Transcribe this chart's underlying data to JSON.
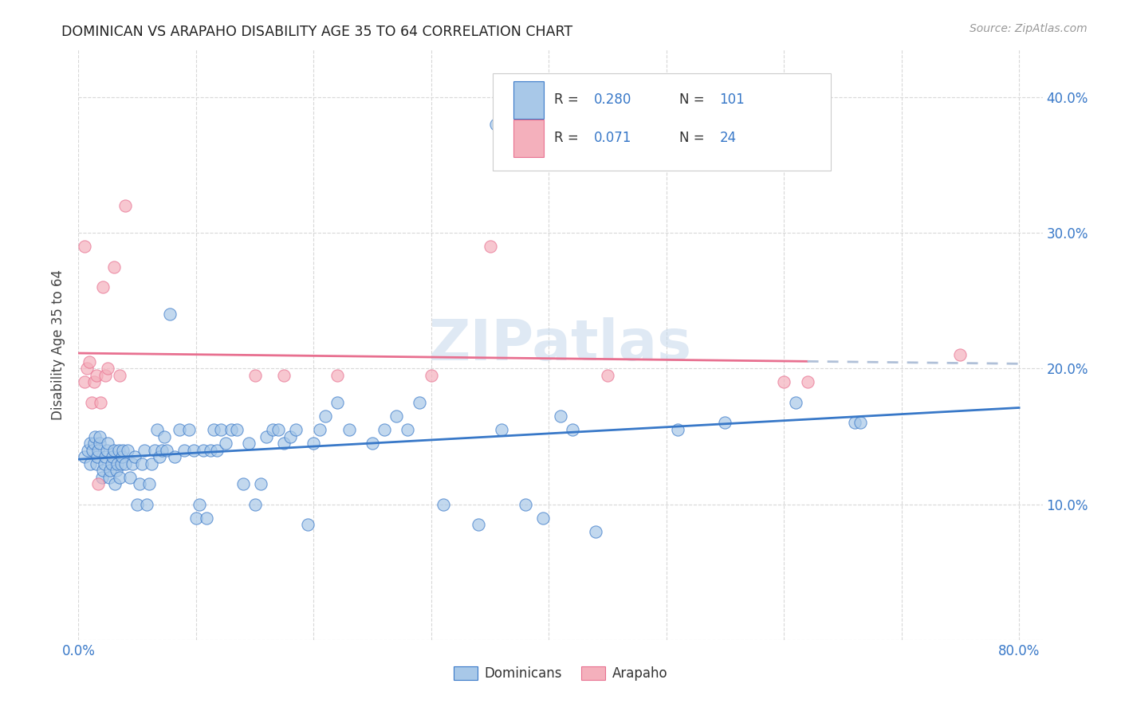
{
  "title": "DOMINICAN VS ARAPAHO DISABILITY AGE 35 TO 64 CORRELATION CHART",
  "source": "Source: ZipAtlas.com",
  "ylabel": "Disability Age 35 to 64",
  "xlim": [
    0.0,
    0.82
  ],
  "ylim": [
    0.0,
    0.435
  ],
  "xticks": [
    0.0,
    0.1,
    0.2,
    0.3,
    0.4,
    0.5,
    0.6,
    0.7,
    0.8
  ],
  "yticks": [
    0.0,
    0.1,
    0.2,
    0.3,
    0.4
  ],
  "dominican_color": "#a8c8e8",
  "arapaho_color": "#f4b0bc",
  "trendline_dominican_color": "#3878c8",
  "trendline_arapaho_color": "#e87090",
  "watermark": "ZIPatlas",
  "legend_R1": "0.280",
  "legend_N1": "101",
  "legend_R2": "0.071",
  "legend_N2": "24",
  "dominican_label": "Dominicans",
  "arapaho_label": "Arapaho",
  "dominican_scatter": [
    [
      0.005,
      0.135
    ],
    [
      0.008,
      0.14
    ],
    [
      0.01,
      0.145
    ],
    [
      0.01,
      0.13
    ],
    [
      0.012,
      0.14
    ],
    [
      0.013,
      0.145
    ],
    [
      0.014,
      0.15
    ],
    [
      0.015,
      0.13
    ],
    [
      0.016,
      0.135
    ],
    [
      0.017,
      0.14
    ],
    [
      0.018,
      0.145
    ],
    [
      0.018,
      0.15
    ],
    [
      0.02,
      0.12
    ],
    [
      0.021,
      0.125
    ],
    [
      0.022,
      0.13
    ],
    [
      0.023,
      0.135
    ],
    [
      0.024,
      0.14
    ],
    [
      0.025,
      0.145
    ],
    [
      0.026,
      0.12
    ],
    [
      0.027,
      0.125
    ],
    [
      0.028,
      0.13
    ],
    [
      0.029,
      0.135
    ],
    [
      0.03,
      0.14
    ],
    [
      0.031,
      0.115
    ],
    [
      0.032,
      0.125
    ],
    [
      0.033,
      0.13
    ],
    [
      0.034,
      0.14
    ],
    [
      0.035,
      0.12
    ],
    [
      0.036,
      0.13
    ],
    [
      0.037,
      0.135
    ],
    [
      0.038,
      0.14
    ],
    [
      0.04,
      0.13
    ],
    [
      0.042,
      0.14
    ],
    [
      0.044,
      0.12
    ],
    [
      0.046,
      0.13
    ],
    [
      0.048,
      0.135
    ],
    [
      0.05,
      0.1
    ],
    [
      0.052,
      0.115
    ],
    [
      0.054,
      0.13
    ],
    [
      0.056,
      0.14
    ],
    [
      0.058,
      0.1
    ],
    [
      0.06,
      0.115
    ],
    [
      0.062,
      0.13
    ],
    [
      0.065,
      0.14
    ],
    [
      0.067,
      0.155
    ],
    [
      0.069,
      0.135
    ],
    [
      0.071,
      0.14
    ],
    [
      0.073,
      0.15
    ],
    [
      0.075,
      0.14
    ],
    [
      0.078,
      0.24
    ],
    [
      0.082,
      0.135
    ],
    [
      0.086,
      0.155
    ],
    [
      0.09,
      0.14
    ],
    [
      0.094,
      0.155
    ],
    [
      0.098,
      0.14
    ],
    [
      0.1,
      0.09
    ],
    [
      0.103,
      0.1
    ],
    [
      0.106,
      0.14
    ],
    [
      0.109,
      0.09
    ],
    [
      0.112,
      0.14
    ],
    [
      0.115,
      0.155
    ],
    [
      0.118,
      0.14
    ],
    [
      0.121,
      0.155
    ],
    [
      0.125,
      0.145
    ],
    [
      0.13,
      0.155
    ],
    [
      0.135,
      0.155
    ],
    [
      0.14,
      0.115
    ],
    [
      0.145,
      0.145
    ],
    [
      0.15,
      0.1
    ],
    [
      0.155,
      0.115
    ],
    [
      0.16,
      0.15
    ],
    [
      0.165,
      0.155
    ],
    [
      0.17,
      0.155
    ],
    [
      0.175,
      0.145
    ],
    [
      0.18,
      0.15
    ],
    [
      0.185,
      0.155
    ],
    [
      0.195,
      0.085
    ],
    [
      0.2,
      0.145
    ],
    [
      0.205,
      0.155
    ],
    [
      0.21,
      0.165
    ],
    [
      0.22,
      0.175
    ],
    [
      0.23,
      0.155
    ],
    [
      0.25,
      0.145
    ],
    [
      0.26,
      0.155
    ],
    [
      0.27,
      0.165
    ],
    [
      0.28,
      0.155
    ],
    [
      0.29,
      0.175
    ],
    [
      0.31,
      0.1
    ],
    [
      0.34,
      0.085
    ],
    [
      0.36,
      0.155
    ],
    [
      0.38,
      0.1
    ],
    [
      0.395,
      0.09
    ],
    [
      0.41,
      0.165
    ],
    [
      0.42,
      0.155
    ],
    [
      0.44,
      0.08
    ],
    [
      0.51,
      0.155
    ],
    [
      0.55,
      0.16
    ],
    [
      0.61,
      0.175
    ],
    [
      0.66,
      0.16
    ],
    [
      0.665,
      0.16
    ],
    [
      0.355,
      0.38
    ]
  ],
  "arapaho_scatter": [
    [
      0.005,
      0.19
    ],
    [
      0.007,
      0.2
    ],
    [
      0.009,
      0.205
    ],
    [
      0.011,
      0.175
    ],
    [
      0.013,
      0.19
    ],
    [
      0.015,
      0.195
    ],
    [
      0.017,
      0.115
    ],
    [
      0.019,
      0.175
    ],
    [
      0.021,
      0.26
    ],
    [
      0.023,
      0.195
    ],
    [
      0.025,
      0.2
    ],
    [
      0.03,
      0.275
    ],
    [
      0.035,
      0.195
    ],
    [
      0.04,
      0.32
    ],
    [
      0.005,
      0.29
    ],
    [
      0.15,
      0.195
    ],
    [
      0.175,
      0.195
    ],
    [
      0.22,
      0.195
    ],
    [
      0.3,
      0.195
    ],
    [
      0.35,
      0.29
    ],
    [
      0.45,
      0.195
    ],
    [
      0.6,
      0.19
    ],
    [
      0.62,
      0.19
    ],
    [
      0.75,
      0.21
    ]
  ],
  "background_color": "#ffffff",
  "grid_color": "#d8d8d8"
}
